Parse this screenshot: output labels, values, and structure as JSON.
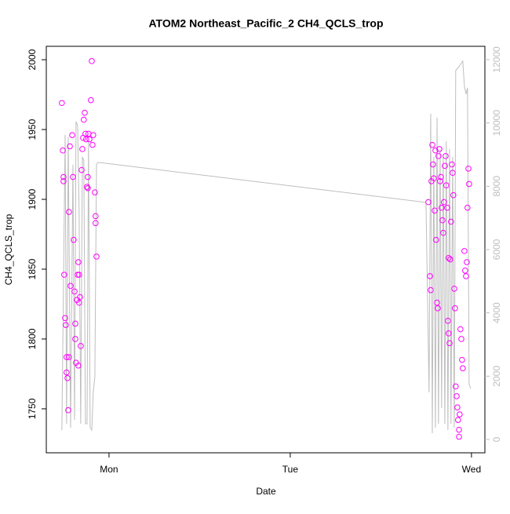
{
  "chart_data": {
    "type": "scatter",
    "title": "ATOM2 Northeast_Pacific_2 CH4_QCLS_trop",
    "xlabel": "Date",
    "ylabel": "CH4_QCLS_trop",
    "xlim": [
      0.654,
      3.074
    ],
    "xticks": [
      {
        "value": 1,
        "label": "Mon"
      },
      {
        "value": 2,
        "label": "Tue"
      },
      {
        "value": 3,
        "label": "Wed"
      }
    ],
    "ylim": [
      1718.5,
      2009.6
    ],
    "yticks": [
      1750,
      1800,
      1850,
      1900,
      1950,
      2000
    ],
    "y2lim": [
      -421,
      12421
    ],
    "y2ticks": [
      0,
      2000,
      4000,
      6000,
      8000,
      10000,
      12000
    ],
    "y2color": "#bebebe",
    "series": [
      {
        "type": "scatter",
        "color": "#ff00ff",
        "x": [
          0.74,
          0.745,
          0.749,
          0.749,
          0.753,
          0.758,
          0.762,
          0.766,
          0.766,
          0.771,
          0.775,
          0.779,
          0.784,
          0.788,
          0.797,
          0.801,
          0.805,
          0.81,
          0.814,
          0.814,
          0.818,
          0.823,
          0.827,
          0.831,
          0.835,
          0.84,
          0.844,
          0.849,
          0.853,
          0.857,
          0.861,
          0.866,
          0.87,
          0.874,
          0.879,
          0.883,
          0.887,
          0.892,
          0.9,
          0.905,
          0.909,
          0.913,
          0.922,
          0.926,
          0.926,
          0.931,
          0.831,
          0.883,
          0.779,
          0.835,
          2.762,
          2.771,
          2.775,
          2.779,
          2.784,
          2.788,
          2.792,
          2.797,
          2.805,
          2.81,
          2.814,
          2.818,
          2.823,
          2.827,
          2.831,
          2.835,
          2.84,
          2.844,
          2.848,
          2.853,
          2.857,
          2.861,
          2.866,
          2.87,
          2.874,
          2.879,
          2.883,
          2.887,
          2.892,
          2.896,
          2.9,
          2.905,
          2.909,
          2.913,
          2.918,
          2.922,
          2.926,
          2.931,
          2.935,
          2.939,
          2.944,
          2.948,
          2.952,
          2.961,
          2.965,
          2.97,
          2.974,
          2.983,
          2.987,
          2.978,
          2.801,
          2.874,
          2.931
        ],
        "values": [
          1969,
          1935,
          1916,
          1913,
          1846,
          1815,
          1810,
          1787,
          1776,
          1772,
          1749,
          1891,
          1938,
          1838,
          1946,
          1916,
          1871,
          1834,
          1811,
          1800,
          1783,
          1828,
          1846,
          1855,
          1846,
          1830,
          1795,
          1921,
          1936,
          1944,
          1957,
          1962,
          1947,
          1943,
          1909,
          1916,
          1947,
          1943,
          1971,
          1999,
          1939,
          1946,
          1905,
          1888,
          1883,
          1859,
          1781,
          1908,
          1787,
          1826,
          1898,
          1845,
          1835,
          1913,
          1939,
          1925,
          1915,
          1892,
          1871,
          1826,
          1822,
          1931,
          1936,
          1913,
          1916,
          1894,
          1885,
          1876,
          1898,
          1924,
          1931,
          1910,
          1894,
          1813,
          1804,
          1797,
          1857,
          1884,
          1925,
          1919,
          1903,
          1836,
          1822,
          1766,
          1759,
          1751,
          1742,
          1735,
          1746,
          1807,
          1800,
          1785,
          1779,
          1863,
          1849,
          1845,
          1855,
          1922,
          1911,
          1894,
          1935,
          1858,
          1730
        ]
      },
      {
        "type": "line",
        "axis": "y2",
        "color": "#bebebe",
        "x": [
          0.74,
          0.758,
          0.766,
          0.775,
          0.788,
          0.801,
          0.81,
          0.818,
          0.827,
          0.835,
          0.844,
          0.853,
          0.861,
          0.87,
          0.879,
          0.887,
          0.896,
          0.905,
          0.913,
          0.922,
          0.931,
          0.939,
          2.749,
          2.766,
          2.775,
          2.784,
          2.792,
          2.801,
          2.81,
          2.818,
          2.827,
          2.835,
          2.844,
          2.853,
          2.861,
          2.87,
          2.879,
          2.887,
          2.896,
          2.905,
          2.913,
          2.931,
          2.952,
          2.961,
          2.97,
          2.978,
          2.987,
          2.996
        ],
        "values": [
          298,
          9622,
          496,
          9548,
          372,
          8680,
          620,
          10044,
          9920,
          7192,
          496,
          8928,
          8804,
          496,
          496,
          9424,
          372,
          298,
          1488,
          1984,
          8680,
          8754,
          7490,
          1488,
          10292,
          198,
          8928,
          372,
          10168,
          496,
          9176,
          992,
          8928,
          496,
          9424,
          298,
          9176,
          496,
          8928,
          372,
          11656,
          11780,
          11954,
          11160,
          10912,
          11110,
          1736,
          1612
        ]
      }
    ]
  }
}
